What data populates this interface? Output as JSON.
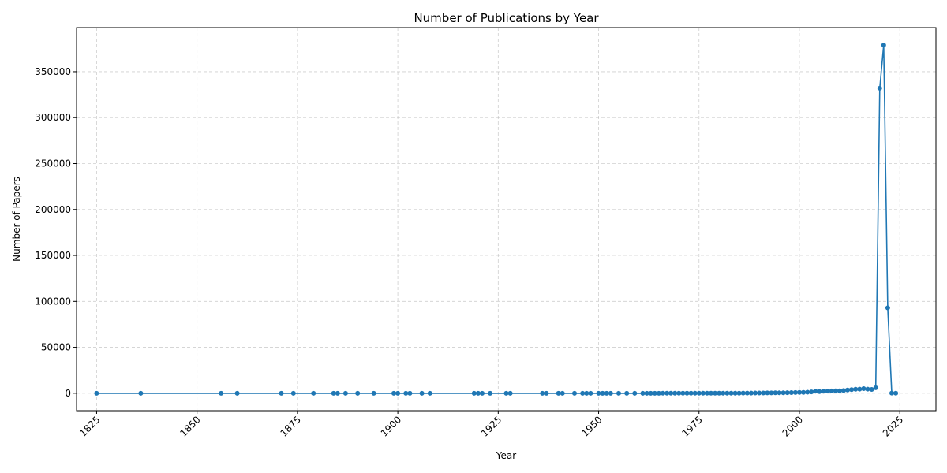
{
  "chart_data": {
    "type": "line",
    "title": "Number of Publications by Year",
    "xlabel": "Year",
    "ylabel": "Number of Papers",
    "xlim": [
      1820,
      2034
    ],
    "ylim": [
      -19000,
      398000
    ],
    "xticks": [
      1825,
      1850,
      1875,
      1900,
      1925,
      1950,
      1975,
      2000,
      2025
    ],
    "yticks": [
      0,
      50000,
      100000,
      150000,
      200000,
      250000,
      300000,
      350000
    ],
    "grid": true,
    "line_color": "#1f77b4",
    "series": [
      {
        "x": [
          1825,
          1836,
          1856,
          1860,
          1871,
          1874,
          1879,
          1884,
          1885,
          1887,
          1890,
          1894,
          1899,
          1900,
          1902,
          1903,
          1906,
          1908,
          1919,
          1920,
          1921,
          1923,
          1927,
          1928,
          1936,
          1937,
          1940,
          1941,
          1944,
          1946,
          1947,
          1948,
          1950,
          1951,
          1952,
          1953,
          1955,
          1957,
          1959,
          1961,
          1962,
          1963,
          1964,
          1965,
          1966,
          1967,
          1968,
          1969,
          1970,
          1971,
          1972,
          1973,
          1974,
          1975,
          1976,
          1977,
          1978,
          1979,
          1980,
          1981,
          1982,
          1983,
          1984,
          1985,
          1986,
          1987,
          1988,
          1989,
          1990,
          1991,
          1992,
          1993,
          1994,
          1995,
          1996,
          1997,
          1998,
          1999,
          2000,
          2001,
          2002,
          2003,
          2004,
          2005,
          2006,
          2007,
          2008,
          2009,
          2010,
          2011,
          2012,
          2013,
          2014,
          2015,
          2016,
          2017,
          2018,
          2019,
          2020,
          2021,
          2022,
          2023,
          2024
        ],
        "y": [
          1,
          1,
          1,
          1,
          1,
          1,
          1,
          1,
          1,
          1,
          1,
          1,
          1,
          1,
          1,
          1,
          1,
          1,
          1,
          1,
          1,
          1,
          1,
          1,
          1,
          1,
          1,
          1,
          1,
          1,
          1,
          1,
          1,
          1,
          1,
          1,
          1,
          1,
          2,
          2,
          3,
          3,
          4,
          5,
          6,
          8,
          10,
          12,
          15,
          18,
          20,
          25,
          30,
          35,
          40,
          50,
          60,
          70,
          80,
          95,
          110,
          130,
          150,
          170,
          190,
          210,
          240,
          270,
          300,
          340,
          380,
          420,
          470,
          520,
          580,
          650,
          720,
          800,
          900,
          1000,
          1200,
          1500,
          2300,
          1800,
          2200,
          2400,
          2500,
          2600,
          2700,
          3000,
          3500,
          4000,
          4300,
          4500,
          5000,
          4500,
          4200,
          6000,
          332000,
          379000,
          93000,
          200,
          100
        ]
      }
    ]
  }
}
